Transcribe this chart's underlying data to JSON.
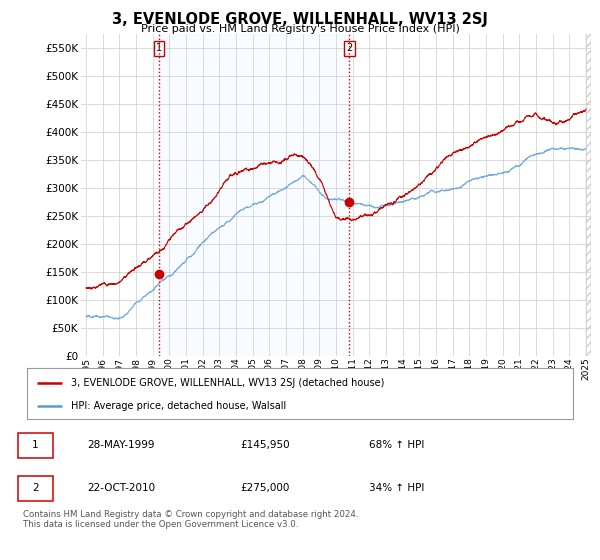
{
  "title": "3, EVENLODE GROVE, WILLENHALL, WV13 2SJ",
  "subtitle": "Price paid vs. HM Land Registry's House Price Index (HPI)",
  "ytick_values": [
    0,
    50000,
    100000,
    150000,
    200000,
    250000,
    300000,
    350000,
    400000,
    450000,
    500000,
    550000
  ],
  "xlim_start": 1994.7,
  "xlim_end": 2025.3,
  "ylim_min": 0,
  "ylim_max": 575000,
  "hpi_color": "#5b9bd5",
  "price_color": "#cc0000",
  "vline_color": "#cc0000",
  "shade_color": "#ddeeff",
  "sale1_year": 1999.38,
  "sale1_price": 145950,
  "sale2_year": 2010.8,
  "sale2_price": 275000,
  "legend_label_price": "3, EVENLODE GROVE, WILLENHALL, WV13 2SJ (detached house)",
  "legend_label_hpi": "HPI: Average price, detached house, Walsall",
  "table_row1": [
    "1",
    "28-MAY-1999",
    "£145,950",
    "68% ↑ HPI"
  ],
  "table_row2": [
    "2",
    "22-OCT-2010",
    "£275,000",
    "34% ↑ HPI"
  ],
  "footer": "Contains HM Land Registry data © Crown copyright and database right 2024.\nThis data is licensed under the Open Government Licence v3.0.",
  "background_color": "#ffffff",
  "grid_color": "#cccccc",
  "xtick_years": [
    1995,
    1996,
    1997,
    1998,
    1999,
    2000,
    2001,
    2002,
    2003,
    2004,
    2005,
    2006,
    2007,
    2008,
    2009,
    2010,
    2011,
    2012,
    2013,
    2014,
    2015,
    2016,
    2017,
    2018,
    2019,
    2020,
    2021,
    2022,
    2023,
    2024,
    2025
  ]
}
